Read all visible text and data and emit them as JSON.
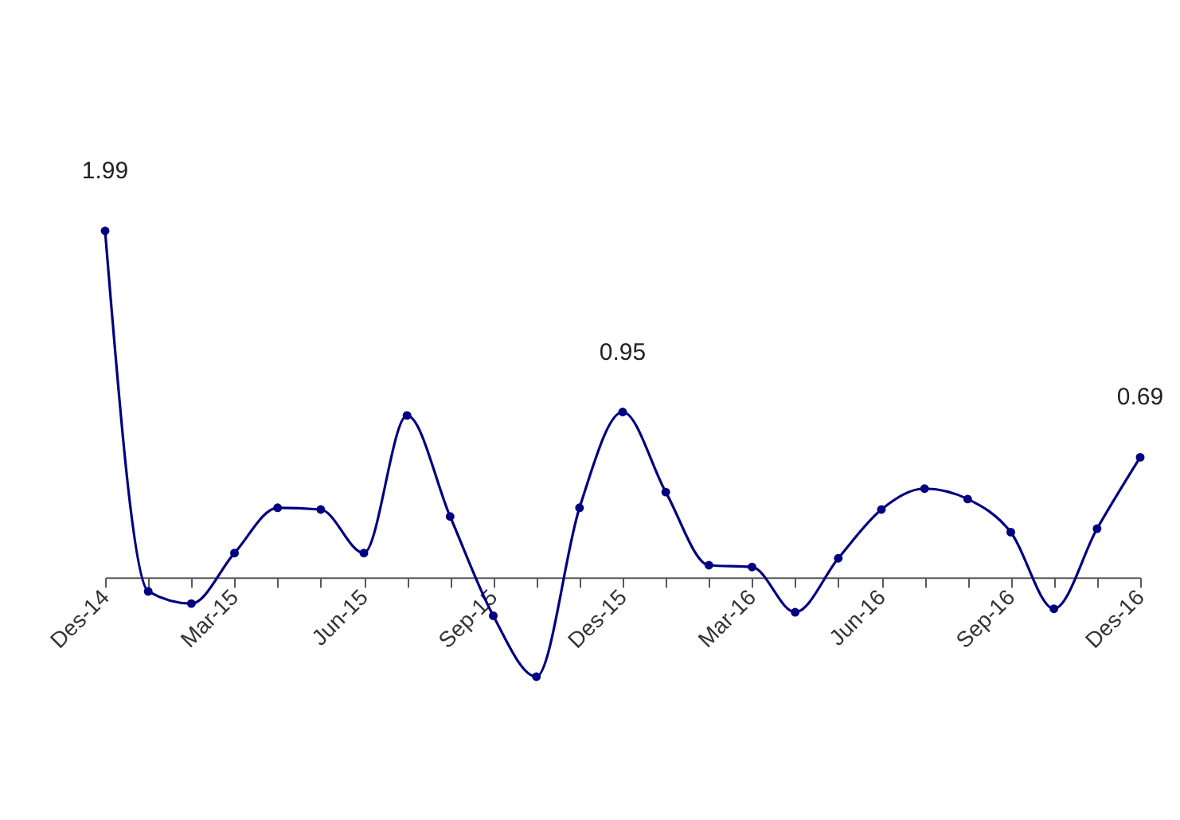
{
  "chart_data": {
    "type": "line",
    "categories": [
      "Des-14",
      null,
      null,
      "Mar-15",
      null,
      null,
      "Jun-15",
      null,
      null,
      "Sep-15",
      null,
      null,
      "Des-15",
      null,
      null,
      "Mar-16",
      null,
      null,
      "Jun-16",
      null,
      null,
      "Sep-16",
      null,
      null,
      "Des-16"
    ],
    "series": [
      {
        "color": "#000080",
        "values": [
          1.99,
          -0.08,
          -0.15,
          0.14,
          0.4,
          0.39,
          0.14,
          0.93,
          0.35,
          -0.22,
          -0.57,
          0.4,
          0.95,
          0.49,
          0.07,
          0.06,
          -0.2,
          0.11,
          0.39,
          0.51,
          0.45,
          0.26,
          -0.18,
          0.28,
          0.69
        ],
        "value_labels": [
          "1.99",
          null,
          null,
          null,
          null,
          null,
          null,
          null,
          null,
          null,
          null,
          null,
          "0.95",
          null,
          null,
          null,
          null,
          null,
          null,
          null,
          null,
          null,
          null,
          null,
          "0.69"
        ]
      }
    ],
    "marker": "circle",
    "legend": false,
    "grid": false
  }
}
